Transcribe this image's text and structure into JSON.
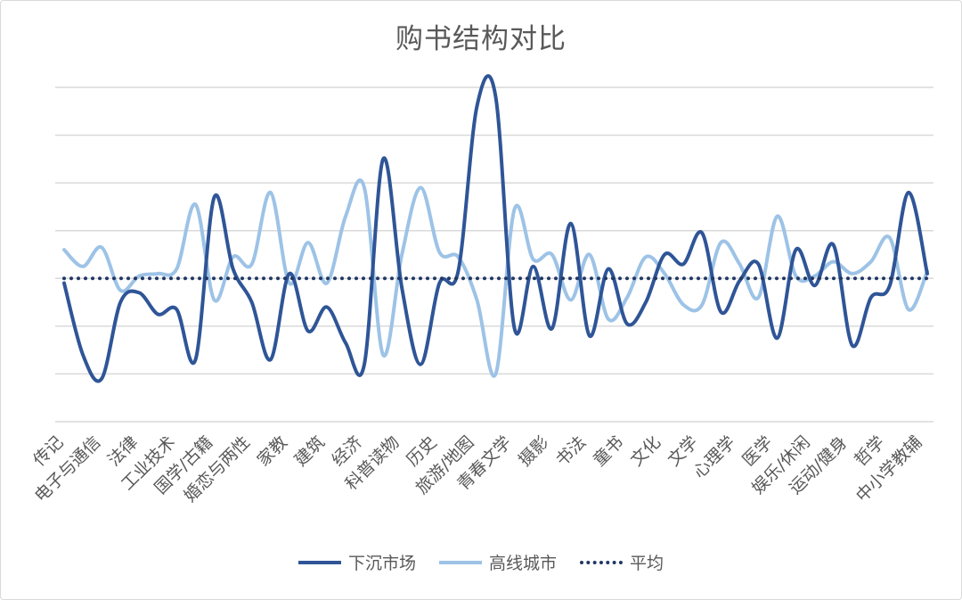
{
  "chart_data": {
    "type": "line",
    "title": "购书结构对比",
    "xlabel": "",
    "ylabel": "",
    "ylim": [
      -3,
      4
    ],
    "grid": true,
    "legend_position": "bottom",
    "x_labels_shown": [
      "传记",
      "电子与通信",
      "法律",
      "工业技术",
      "国学/古籍",
      "婚恋与两性",
      "家教",
      "建筑",
      "经济",
      "科普读物",
      "历史",
      "旅游/地图",
      "青春文学",
      "摄影",
      "书法",
      "童书",
      "文化",
      "文学",
      "心理学",
      "医学",
      "娱乐/休闲",
      "运动/健身",
      "哲学",
      "中小学教辅"
    ],
    "series": [
      {
        "name": "下沉市场",
        "color": "#2f5597",
        "style": "solid",
        "values": [
          -0.1,
          -1.6,
          -2.1,
          -0.5,
          -0.3,
          -0.75,
          -0.65,
          -1.7,
          1.7,
          0.2,
          -0.5,
          -1.7,
          0.1,
          -1.1,
          -0.6,
          -1.35,
          -1.8,
          2.5,
          -0.2,
          -1.8,
          -0.1,
          0.15,
          3.6,
          3.8,
          -1.05,
          0.25,
          -1.05,
          1.15,
          -1.2,
          0.2,
          -0.95,
          -0.5,
          0.5,
          0.3,
          0.95,
          -0.7,
          -0.05,
          0.3,
          -1.25,
          0.6,
          -0.15,
          0.7,
          -1.4,
          -0.4,
          -0.15,
          1.8,
          0.1
        ]
      },
      {
        "name": "高线城市",
        "color": "#9dc3e6",
        "style": "solid",
        "values": [
          0.6,
          0.25,
          0.65,
          -0.25,
          0.05,
          0.1,
          0.2,
          1.55,
          -0.45,
          0.45,
          0.3,
          1.8,
          -0.1,
          0.75,
          -0.1,
          1.3,
          1.9,
          -1.6,
          0.5,
          1.9,
          0.55,
          0.45,
          -0.45,
          -2.0,
          1.45,
          0.4,
          0.5,
          -0.45,
          0.5,
          -0.85,
          -0.4,
          0.45,
          0.1,
          -0.55,
          -0.55,
          0.75,
          0.3,
          -0.4,
          1.3,
          0.05,
          0.05,
          0.35,
          0.1,
          0.35,
          0.85,
          -0.65,
          0.15
        ]
      },
      {
        "name": "平均",
        "color": "#203864",
        "style": "dotted",
        "values": [
          0,
          0
        ]
      }
    ]
  }
}
